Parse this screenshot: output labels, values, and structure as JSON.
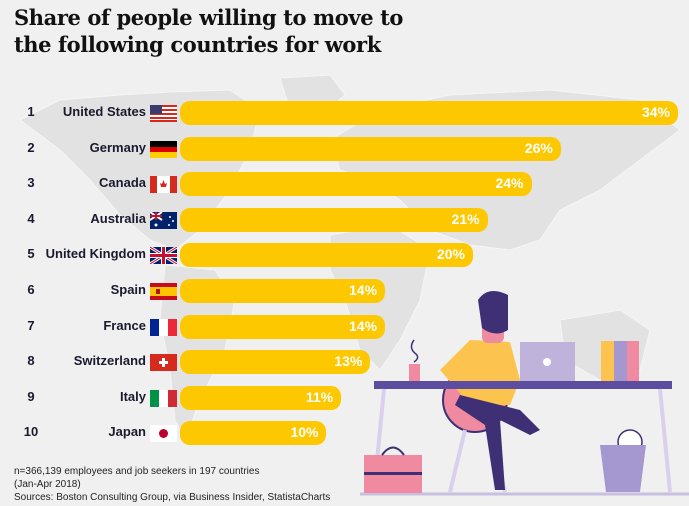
{
  "chart_data": {
    "type": "bar",
    "orientation": "horizontal",
    "title": "Share of people willing to move to the following countries for work",
    "categories": [
      "United States",
      "Germany",
      "Canada",
      "Australia",
      "United Kingdom",
      "Spain",
      "France",
      "Switzerland",
      "Italy",
      "Japan"
    ],
    "ranks": [
      "1",
      "2",
      "3",
      "4",
      "5",
      "6",
      "7",
      "8",
      "9",
      "10"
    ],
    "values": [
      34,
      26,
      24,
      21,
      20,
      14,
      14,
      13,
      11,
      10
    ],
    "labels": [
      "34%",
      "26%",
      "24%",
      "21%",
      "20%",
      "14%",
      "14%",
      "13%",
      "11%",
      "10%"
    ],
    "unit": "%",
    "xlim": [
      0,
      34
    ],
    "grid": false,
    "legend": "none",
    "flags": [
      "us-flag-icon",
      "germany-flag-icon",
      "canada-flag-icon",
      "australia-flag-icon",
      "uk-flag-icon",
      "spain-flag-icon",
      "france-flag-icon",
      "switzerland-flag-icon",
      "italy-flag-icon",
      "japan-flag-icon"
    ],
    "bar_color": "#fdc800",
    "value_label_color": "#ffffff"
  },
  "footnote": {
    "line1": "n=366,139 employees and job seekers in 197 countries",
    "line2": "(Jan-Apr 2018)",
    "line3": "Sources: Boston Consulting Group, via Business Insider, StatistaCharts"
  },
  "colors": {
    "background": "#f0f0f0",
    "map": "#e2e2e2",
    "accent_purple": "#3f3075",
    "accent_pink": "#ef8aa0",
    "accent_yellow": "#fcc44f"
  }
}
